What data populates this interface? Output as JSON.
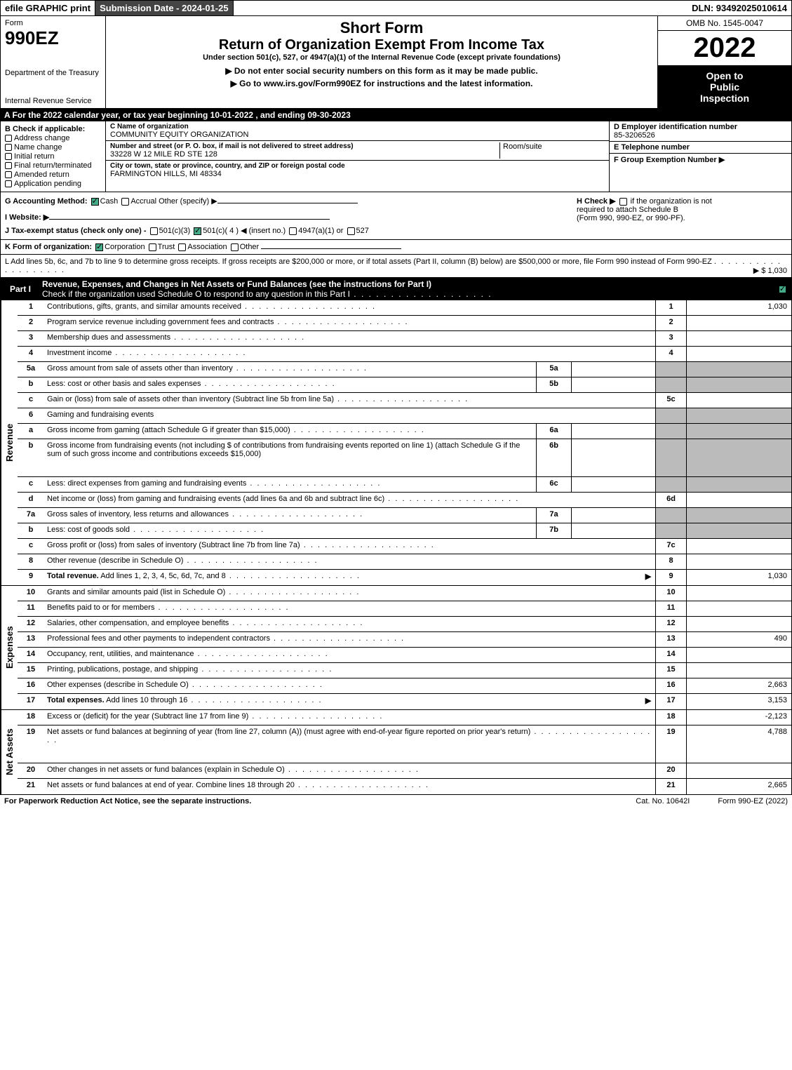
{
  "top": {
    "efile": "efile GRAPHIC print",
    "submission_label": "Submission Date - 2024-01-25",
    "dln": "DLN: 93492025010614"
  },
  "header": {
    "form_word": "Form",
    "form_code": "990EZ",
    "dept1": "Department of the Treasury",
    "dept2": "Internal Revenue Service",
    "short_form": "Short Form",
    "title": "Return of Organization Exempt From Income Tax",
    "subtitle": "Under section 501(c), 527, or 4947(a)(1) of the Internal Revenue Code (except private foundations)",
    "note": "▶ Do not enter social security numbers on this form as it may be made public.",
    "link": "▶ Go to www.irs.gov/Form990EZ for instructions and the latest information.",
    "omb": "OMB No. 1545-0047",
    "year": "2022",
    "inspection1": "Open to",
    "inspection2": "Public",
    "inspection3": "Inspection"
  },
  "sectionA": "A  For the 2022 calendar year, or tax year beginning 10-01-2022  , and ending 09-30-2023",
  "colB": {
    "label": "B  Check if applicable:",
    "opts": [
      "Address change",
      "Name change",
      "Initial return",
      "Final return/terminated",
      "Amended return",
      "Application pending"
    ]
  },
  "colC": {
    "name_label": "C Name of organization",
    "name": "COMMUNITY EQUITY ORGANIZATION",
    "addr_label": "Number and street (or P. O. box, if mail is not delivered to street address)",
    "addr": "33228 W 12 MILE RD STE 128",
    "roomsuite": "Room/suite",
    "city_label": "City or town, state or province, country, and ZIP or foreign postal code",
    "city": "FARMINGTON HILLS, MI  48334"
  },
  "colD": {
    "ein_label": "D Employer identification number",
    "ein": "85-3206526",
    "tel_label": "E Telephone number",
    "group_label": "F Group Exemption Number  ▶"
  },
  "rowG": {
    "accounting": "G Accounting Method:",
    "cash": "Cash",
    "accrual": "Accrual",
    "other": "Other (specify) ▶",
    "website": "I Website: ▶",
    "tax_exempt": "J Tax-exempt status (check only one) -",
    "te_501c3": "501(c)(3)",
    "te_501c": "501(c)( 4 ) ◀ (insert no.)",
    "te_4947": "4947(a)(1) or",
    "te_527": "527",
    "h_check": "H  Check ▶",
    "h_text1": "if the organization is not",
    "h_text2": "required to attach Schedule B",
    "h_text3": "(Form 990, 990-EZ, or 990-PF)."
  },
  "rowK": {
    "label": "K Form of organization:",
    "corp": "Corporation",
    "trust": "Trust",
    "assoc": "Association",
    "other": "Other"
  },
  "rowL": {
    "text": "L Add lines 5b, 6c, and 7b to line 9 to determine gross receipts. If gross receipts are $200,000 or more, or if total assets (Part II, column (B) below) are $500,000 or more, file Form 990 instead of Form 990-EZ",
    "amount": "▶ $ 1,030"
  },
  "partI": {
    "label": "Part I",
    "title": "Revenue, Expenses, and Changes in Net Assets or Fund Balances (see the instructions for Part I)",
    "subtitle": "Check if the organization used Schedule O to respond to any question in this Part I"
  },
  "sides": {
    "revenue": "Revenue",
    "expenses": "Expenses",
    "netassets": "Net Assets"
  },
  "lines": [
    {
      "n": "1",
      "d": "Contributions, gifts, grants, and similar amounts received",
      "ref": "1",
      "amt": "1,030"
    },
    {
      "n": "2",
      "d": "Program service revenue including government fees and contracts",
      "ref": "2",
      "amt": ""
    },
    {
      "n": "3",
      "d": "Membership dues and assessments",
      "ref": "3",
      "amt": ""
    },
    {
      "n": "4",
      "d": "Investment income",
      "ref": "4",
      "amt": ""
    },
    {
      "n": "5a",
      "d": "Gross amount from sale of assets other than inventory",
      "sub": "5a",
      "subval": "",
      "ref": "",
      "amt": "",
      "shade": true
    },
    {
      "n": "b",
      "d": "Less: cost or other basis and sales expenses",
      "sub": "5b",
      "subval": "",
      "ref": "",
      "amt": "",
      "shade": true
    },
    {
      "n": "c",
      "d": "Gain or (loss) from sale of assets other than inventory (Subtract line 5b from line 5a)",
      "ref": "5c",
      "amt": ""
    },
    {
      "n": "6",
      "d": "Gaming and fundraising events",
      "ref": "",
      "amt": "",
      "shade": true,
      "nodots": true
    },
    {
      "n": "a",
      "d": "Gross income from gaming (attach Schedule G if greater than $15,000)",
      "sub": "6a",
      "subval": "",
      "ref": "",
      "amt": "",
      "shade": true
    },
    {
      "n": "b",
      "d": "Gross income from fundraising events (not including $                          of contributions from fundraising events reported on line 1) (attach Schedule G if the sum of such gross income and contributions exceeds $15,000)",
      "sub": "6b",
      "subval": "",
      "ref": "",
      "amt": "",
      "shade": true,
      "tall": true,
      "nodots": true
    },
    {
      "n": "c",
      "d": "Less: direct expenses from gaming and fundraising events",
      "sub": "6c",
      "subval": "",
      "ref": "",
      "amt": "",
      "shade": true
    },
    {
      "n": "d",
      "d": "Net income or (loss) from gaming and fundraising events (add lines 6a and 6b and subtract line 6c)",
      "ref": "6d",
      "amt": ""
    },
    {
      "n": "7a",
      "d": "Gross sales of inventory, less returns and allowances",
      "sub": "7a",
      "subval": "",
      "ref": "",
      "amt": "",
      "shade": true
    },
    {
      "n": "b",
      "d": "Less: cost of goods sold",
      "sub": "7b",
      "subval": "",
      "ref": "",
      "amt": "",
      "shade": true
    },
    {
      "n": "c",
      "d": "Gross profit or (loss) from sales of inventory (Subtract line 7b from line 7a)",
      "ref": "7c",
      "amt": ""
    },
    {
      "n": "8",
      "d": "Other revenue (describe in Schedule O)",
      "ref": "8",
      "amt": ""
    },
    {
      "n": "9",
      "d": "Total revenue. Add lines 1, 2, 3, 4, 5c, 6d, 7c, and 8",
      "ref": "9",
      "amt": "1,030",
      "arrow": true,
      "bold": true
    }
  ],
  "exp_lines": [
    {
      "n": "10",
      "d": "Grants and similar amounts paid (list in Schedule O)",
      "ref": "10",
      "amt": ""
    },
    {
      "n": "11",
      "d": "Benefits paid to or for members",
      "ref": "11",
      "amt": ""
    },
    {
      "n": "12",
      "d": "Salaries, other compensation, and employee benefits",
      "ref": "12",
      "amt": ""
    },
    {
      "n": "13",
      "d": "Professional fees and other payments to independent contractors",
      "ref": "13",
      "amt": "490"
    },
    {
      "n": "14",
      "d": "Occupancy, rent, utilities, and maintenance",
      "ref": "14",
      "amt": ""
    },
    {
      "n": "15",
      "d": "Printing, publications, postage, and shipping",
      "ref": "15",
      "amt": ""
    },
    {
      "n": "16",
      "d": "Other expenses (describe in Schedule O)",
      "ref": "16",
      "amt": "2,663"
    },
    {
      "n": "17",
      "d": "Total expenses. Add lines 10 through 16",
      "ref": "17",
      "amt": "3,153",
      "arrow": true,
      "bold": true
    }
  ],
  "na_lines": [
    {
      "n": "18",
      "d": "Excess or (deficit) for the year (Subtract line 17 from line 9)",
      "ref": "18",
      "amt": "-2,123"
    },
    {
      "n": "19",
      "d": "Net assets or fund balances at beginning of year (from line 27, column (A)) (must agree with end-of-year figure reported on prior year's return)",
      "ref": "19",
      "amt": "4,788",
      "tall": true
    },
    {
      "n": "20",
      "d": "Other changes in net assets or fund balances (explain in Schedule O)",
      "ref": "20",
      "amt": ""
    },
    {
      "n": "21",
      "d": "Net assets or fund balances at end of year. Combine lines 18 through 20",
      "ref": "21",
      "amt": "2,665"
    }
  ],
  "footer": {
    "left": "For Paperwork Reduction Act Notice, see the separate instructions.",
    "mid": "Cat. No. 10642I",
    "right": "Form 990-EZ (2022)"
  }
}
